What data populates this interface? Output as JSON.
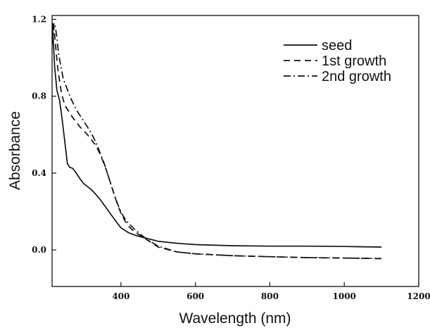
{
  "chart_data": {
    "type": "line",
    "xlabel": "Wavelength (nm)",
    "ylabel": "Absorbance",
    "xlim": [
      215,
      1200
    ],
    "ylim": [
      -0.19,
      1.22
    ],
    "xticks": [
      {
        "value": 400,
        "label": "400"
      },
      {
        "value": 600,
        "label": "600"
      },
      {
        "value": 800,
        "label": "800"
      },
      {
        "value": 1000,
        "label": "1000"
      },
      {
        "value": 1200,
        "label": "1200"
      }
    ],
    "yticks": [
      {
        "value": 0.0,
        "label": "0.0"
      },
      {
        "value": 0.4,
        "label": "0.4"
      },
      {
        "value": 0.8,
        "label": "0.8"
      },
      {
        "value": 1.2,
        "label": "1.2"
      }
    ],
    "grid": false,
    "legend_position": "top-right",
    "series": [
      {
        "name": "seed",
        "dash": "solid",
        "x": [
          216,
          218,
          222,
          228,
          235,
          242,
          250,
          256,
          262,
          270,
          280,
          290,
          300,
          310,
          320,
          330,
          345,
          360,
          375,
          390,
          400,
          420,
          440,
          460,
          480,
          500,
          550,
          600,
          700,
          800,
          900,
          1000,
          1100
        ],
        "y": [
          1.17,
          1.1,
          0.95,
          0.83,
          0.78,
          0.68,
          0.55,
          0.45,
          0.43,
          0.425,
          0.4,
          0.37,
          0.345,
          0.33,
          0.315,
          0.295,
          0.26,
          0.22,
          0.18,
          0.14,
          0.115,
          0.09,
          0.075,
          0.065,
          0.055,
          0.045,
          0.035,
          0.028,
          0.022,
          0.02,
          0.02,
          0.018,
          0.015
        ]
      },
      {
        "name": "1st growth",
        "dash": "dashed",
        "x": [
          216,
          220,
          225,
          230,
          235,
          240,
          245,
          250,
          260,
          270,
          280,
          290,
          300,
          310,
          320,
          330,
          340,
          350,
          360,
          370,
          380,
          390,
          400,
          410,
          420,
          430,
          440,
          460,
          480,
          500,
          550,
          600,
          700,
          800,
          900,
          1000,
          1100
        ],
        "y": [
          1.18,
          1.16,
          1.05,
          0.95,
          0.88,
          0.82,
          0.78,
          0.75,
          0.72,
          0.69,
          0.665,
          0.64,
          0.62,
          0.6,
          0.575,
          0.55,
          0.515,
          0.47,
          0.42,
          0.36,
          0.3,
          0.24,
          0.19,
          0.155,
          0.125,
          0.105,
          0.09,
          0.065,
          0.04,
          0.015,
          -0.01,
          -0.02,
          -0.03,
          -0.035,
          -0.04,
          -0.042,
          -0.045
        ]
      },
      {
        "name": "2nd growth",
        "dash": "dashdot",
        "x": [
          216,
          218,
          220,
          223,
          227,
          232,
          238,
          245,
          255,
          265,
          275,
          285,
          295,
          305,
          315,
          325,
          335,
          345,
          355,
          365,
          375,
          385,
          395,
          405,
          415,
          425,
          435,
          450,
          470,
          500,
          550,
          600,
          700,
          800,
          900,
          1000,
          1100
        ],
        "y": [
          1.07,
          1.12,
          1.18,
          1.17,
          1.12,
          1.03,
          0.96,
          0.89,
          0.84,
          0.79,
          0.75,
          0.715,
          0.685,
          0.655,
          0.625,
          0.59,
          0.55,
          0.5,
          0.45,
          0.39,
          0.33,
          0.27,
          0.22,
          0.18,
          0.15,
          0.13,
          0.11,
          0.085,
          0.055,
          0.02,
          -0.01,
          -0.02,
          -0.03,
          -0.035,
          -0.04,
          -0.042,
          -0.045
        ]
      }
    ]
  }
}
